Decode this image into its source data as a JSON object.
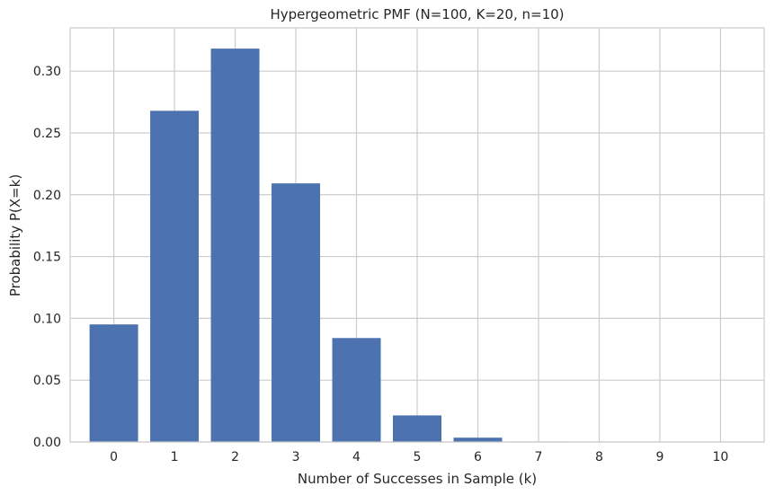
{
  "chart_data": {
    "type": "bar",
    "title": "Hypergeometric PMF (N=100, K=20, n=10)",
    "xlabel": "Number of Successes in Sample (k)",
    "ylabel": "Probability P(X=k)",
    "categories": [
      "0",
      "1",
      "2",
      "3",
      "4",
      "5",
      "6",
      "7",
      "8",
      "9",
      "10"
    ],
    "values": [
      0.0951,
      0.2679,
      0.3182,
      0.2092,
      0.0841,
      0.0215,
      0.0035,
      0.0004,
      2e-05,
      6e-07,
      1e-08
    ],
    "ylim": [
      0,
      0.335
    ],
    "yticks": [
      0.0,
      0.05,
      0.1,
      0.15,
      0.2,
      0.25,
      0.3
    ],
    "ytick_labels": [
      "0.00",
      "0.05",
      "0.10",
      "0.15",
      "0.20",
      "0.25",
      "0.30"
    ],
    "grid": true,
    "colors": {
      "bar": "#4c72b0",
      "grid": "#cccccc",
      "text": "#262626"
    }
  }
}
